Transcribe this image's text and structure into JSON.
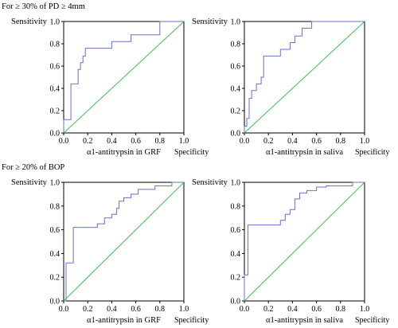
{
  "sections": [
    {
      "label": "For ≥ 30% of PD ≥ 4mm"
    },
    {
      "label": "For ≥ 20% of BOP"
    }
  ],
  "colors": {
    "roc": "#6673c8",
    "reference": "#3fbf52"
  },
  "chart_data": [
    {
      "type": "line",
      "title": "",
      "xlabel": "α1-antitrypsin in GRF",
      "ylabel": "Sensitivity",
      "xaxis_end_label": "Specificity",
      "xlim": [
        0,
        1
      ],
      "ylim": [
        0,
        1
      ],
      "ticks": [
        "0.0",
        "0.2",
        "0.4",
        "0.6",
        "0.8",
        "1.0"
      ],
      "grid": false,
      "series": [
        {
          "points": [
            [
              0,
              0
            ],
            [
              0,
              0.12
            ],
            [
              0.06,
              0.12
            ],
            [
              0.06,
              0.44
            ],
            [
              0.12,
              0.44
            ],
            [
              0.12,
              0.57
            ],
            [
              0.14,
              0.57
            ],
            [
              0.14,
              0.63
            ],
            [
              0.16,
              0.63
            ],
            [
              0.16,
              0.69
            ],
            [
              0.18,
              0.69
            ],
            [
              0.18,
              0.76
            ],
            [
              0.4,
              0.76
            ],
            [
              0.4,
              0.82
            ],
            [
              0.56,
              0.82
            ],
            [
              0.56,
              0.88
            ],
            [
              0.8,
              0.88
            ],
            [
              0.8,
              1
            ],
            [
              1,
              1
            ]
          ]
        },
        {
          "points": [
            [
              0,
              0
            ],
            [
              1,
              1
            ]
          ]
        }
      ]
    },
    {
      "type": "line",
      "title": "",
      "xlabel": "α1-antitrypsin in saliva",
      "ylabel": "Sensitivity",
      "xaxis_end_label": "Specificity",
      "xlim": [
        0,
        1
      ],
      "ylim": [
        0,
        1
      ],
      "ticks": [
        "0.0",
        "0.2",
        "0.4",
        "0.6",
        "0.8",
        "1.0"
      ],
      "grid": false,
      "series": [
        {
          "points": [
            [
              0,
              0
            ],
            [
              0,
              0.06
            ],
            [
              0.02,
              0.06
            ],
            [
              0.02,
              0.13
            ],
            [
              0.04,
              0.13
            ],
            [
              0.04,
              0.31
            ],
            [
              0.06,
              0.31
            ],
            [
              0.06,
              0.38
            ],
            [
              0.1,
              0.38
            ],
            [
              0.1,
              0.44
            ],
            [
              0.14,
              0.44
            ],
            [
              0.14,
              0.5
            ],
            [
              0.16,
              0.5
            ],
            [
              0.16,
              0.69
            ],
            [
              0.3,
              0.69
            ],
            [
              0.3,
              0.75
            ],
            [
              0.38,
              0.75
            ],
            [
              0.38,
              0.81
            ],
            [
              0.42,
              0.81
            ],
            [
              0.42,
              0.87
            ],
            [
              0.48,
              0.87
            ],
            [
              0.48,
              0.94
            ],
            [
              0.56,
              0.94
            ],
            [
              0.56,
              1
            ],
            [
              1,
              1
            ]
          ]
        },
        {
          "points": [
            [
              0,
              0
            ],
            [
              1,
              1
            ]
          ]
        }
      ]
    },
    {
      "type": "line",
      "title": "",
      "xlabel": "α1-antitrypsin in GRF",
      "ylabel": "Sensitivity",
      "xaxis_end_label": "Specificity",
      "xlim": [
        0,
        1
      ],
      "ylim": [
        0,
        1
      ],
      "ticks": [
        "0.0",
        "0.2",
        "0.4",
        "0.6",
        "0.8",
        "1.0"
      ],
      "grid": false,
      "series": [
        {
          "points": [
            [
              0,
              0
            ],
            [
              0.02,
              0
            ],
            [
              0.02,
              0.32
            ],
            [
              0.08,
              0.32
            ],
            [
              0.08,
              0.62
            ],
            [
              0.28,
              0.62
            ],
            [
              0.28,
              0.65
            ],
            [
              0.34,
              0.65
            ],
            [
              0.34,
              0.7
            ],
            [
              0.4,
              0.7
            ],
            [
              0.4,
              0.73
            ],
            [
              0.44,
              0.73
            ],
            [
              0.44,
              0.78
            ],
            [
              0.46,
              0.78
            ],
            [
              0.46,
              0.84
            ],
            [
              0.5,
              0.84
            ],
            [
              0.5,
              0.87
            ],
            [
              0.56,
              0.87
            ],
            [
              0.56,
              0.9
            ],
            [
              0.62,
              0.9
            ],
            [
              0.62,
              0.94
            ],
            [
              0.76,
              0.94
            ],
            [
              0.76,
              0.97
            ],
            [
              0.9,
              0.97
            ],
            [
              0.9,
              1
            ],
            [
              1,
              1
            ]
          ]
        },
        {
          "points": [
            [
              0,
              0
            ],
            [
              1,
              1
            ]
          ]
        }
      ]
    },
    {
      "type": "line",
      "title": "",
      "xlabel": "α1-antitrypsin in saliva",
      "ylabel": "Sensitivity",
      "xaxis_end_label": "Specificity",
      "xlim": [
        0,
        1
      ],
      "ylim": [
        0,
        1
      ],
      "ticks": [
        "0.0",
        "0.2",
        "0.4",
        "0.6",
        "0.8",
        "1.0"
      ],
      "grid": false,
      "series": [
        {
          "points": [
            [
              0,
              0
            ],
            [
              0,
              0.22
            ],
            [
              0.03,
              0.22
            ],
            [
              0.03,
              0.64
            ],
            [
              0.3,
              0.64
            ],
            [
              0.3,
              0.68
            ],
            [
              0.34,
              0.68
            ],
            [
              0.34,
              0.73
            ],
            [
              0.38,
              0.73
            ],
            [
              0.38,
              0.77
            ],
            [
              0.42,
              0.77
            ],
            [
              0.42,
              0.86
            ],
            [
              0.46,
              0.86
            ],
            [
              0.46,
              0.91
            ],
            [
              0.52,
              0.91
            ],
            [
              0.52,
              0.93
            ],
            [
              0.6,
              0.93
            ],
            [
              0.6,
              0.96
            ],
            [
              0.68,
              0.96
            ],
            [
              0.68,
              0.97
            ],
            [
              0.9,
              0.97
            ],
            [
              0.9,
              1
            ],
            [
              1,
              1
            ]
          ]
        },
        {
          "points": [
            [
              0,
              0
            ],
            [
              1,
              1
            ]
          ]
        }
      ]
    }
  ]
}
